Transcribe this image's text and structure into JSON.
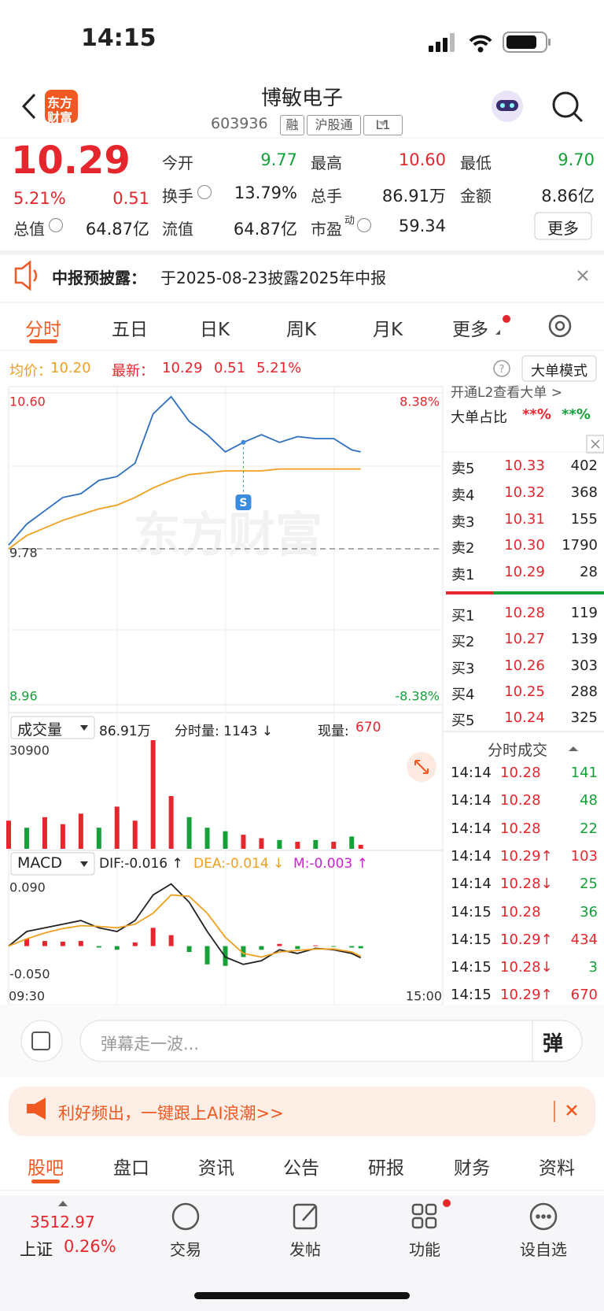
{
  "colors": {
    "up": "#e5262d",
    "down": "#16a03a",
    "avg": "#f0a020",
    "price": "#2f6fbf",
    "accent": "#f05a22"
  },
  "status_bar": {
    "time": "14:15"
  },
  "header": {
    "logo_lines": [
      "东方",
      "财富"
    ],
    "title": "博敏电子",
    "code": "603936",
    "tags": [
      "融",
      "沪股通",
      "L1"
    ]
  },
  "quote": {
    "price": "10.29",
    "change_pct": "5.21%",
    "change": "0.51",
    "tone": "up",
    "fields": [
      {
        "label": "今开",
        "value": "9.77",
        "tone": "down"
      },
      {
        "label": "最高",
        "value": "10.60",
        "tone": "up"
      },
      {
        "label": "最低",
        "value": "9.70",
        "tone": "down"
      },
      {
        "label": "换手",
        "value": "13.79%",
        "info": true
      },
      {
        "label": "总手",
        "value": "86.91万"
      },
      {
        "label": "金额",
        "value": "8.86亿"
      },
      {
        "label": "总值",
        "value": "64.87亿",
        "info": true
      },
      {
        "label": "流值",
        "value": "64.87亿"
      },
      {
        "label": "市盈",
        "sup": "动",
        "value": "59.34",
        "info": true
      }
    ],
    "more_button": "更多"
  },
  "notice": {
    "title": "中报预披露：",
    "text": "于2025-08-23披露2025年中报"
  },
  "tabs": {
    "items": [
      "分时",
      "五日",
      "日K",
      "周K",
      "月K",
      "更多"
    ],
    "active": 0
  },
  "info_line": {
    "avg_label": "均价：",
    "avg": "10.20",
    "latest_label": "最新：",
    "latest": "10.29",
    "change": "0.51",
    "change_pct": "5.21%",
    "mode_button": "大单模式"
  },
  "level2": {
    "promo": "开通L2查看大单 >",
    "ratio_label": "大单占比",
    "buy": "**%",
    "sell": "**%"
  },
  "order_book": {
    "asks": [
      [
        "卖5",
        "10.33",
        "402"
      ],
      [
        "卖4",
        "10.32",
        "368"
      ],
      [
        "卖3",
        "10.31",
        "155"
      ],
      [
        "卖2",
        "10.30",
        "1790"
      ],
      [
        "卖1",
        "10.29",
        "28"
      ]
    ],
    "bids": [
      [
        "买1",
        "10.28",
        "119"
      ],
      [
        "买2",
        "10.27",
        "139"
      ],
      [
        "买3",
        "10.26",
        "303"
      ],
      [
        "买4",
        "10.25",
        "288"
      ],
      [
        "买5",
        "10.24",
        "325"
      ]
    ]
  },
  "trades": {
    "title": "分时成交",
    "rows": [
      {
        "time": "14:14",
        "price": "10.28",
        "volume": "141",
        "tone": "down"
      },
      {
        "time": "14:14",
        "price": "10.28",
        "volume": "48",
        "tone": "down"
      },
      {
        "time": "14:14",
        "price": "10.28",
        "volume": "22",
        "tone": "down"
      },
      {
        "time": "14:14",
        "price": "10.29↑",
        "volume": "103",
        "tone": "up"
      },
      {
        "time": "14:14",
        "price": "10.28↓",
        "volume": "25",
        "tone": "down"
      },
      {
        "time": "14:15",
        "price": "10.28",
        "volume": "36",
        "tone": "down"
      },
      {
        "time": "14:15",
        "price": "10.29↑",
        "volume": "434",
        "tone": "up"
      },
      {
        "time": "14:15",
        "price": "10.28↓",
        "volume": "3",
        "tone": "down"
      },
      {
        "time": "14:15",
        "price": "10.29↑",
        "volume": "670",
        "tone": "up"
      }
    ]
  },
  "chart_data": [
    {
      "type": "line",
      "x": [
        "09:30",
        "09:40",
        "09:50",
        "10:00",
        "10:10",
        "10:20",
        "10:30",
        "10:40",
        "10:50",
        "11:00",
        "11:10",
        "11:20",
        "11:30",
        "13:10",
        "13:20",
        "13:30",
        "13:40",
        "13:50",
        "14:00",
        "14:10",
        "14:15"
      ],
      "series": [
        {
          "color": "#2f6fbf",
          "values": [
            9.8,
            9.91,
            9.98,
            10.05,
            10.07,
            10.14,
            10.16,
            10.23,
            10.49,
            10.58,
            10.45,
            10.38,
            10.29,
            10.34,
            10.38,
            10.34,
            10.37,
            10.36,
            10.36,
            10.3,
            10.29
          ]
        },
        {
          "color": "#f0a020",
          "values": [
            9.78,
            9.85,
            9.89,
            9.93,
            9.96,
            9.99,
            10.01,
            10.05,
            10.1,
            10.14,
            10.17,
            10.18,
            10.19,
            10.19,
            10.19,
            10.2,
            10.2,
            10.2,
            10.2,
            10.2,
            10.2
          ]
        }
      ],
      "ylim": [
        8.96,
        10.6
      ],
      "yticks": [
        {
          "value": 10.6,
          "label": "10.60"
        },
        9.78,
        8.96
      ],
      "y2lim": [
        -8.38,
        8.38
      ],
      "y2ticks": [
        {
          "value": 8.38,
          "label": "8.38%"
        },
        {
          "value": -8.38,
          "label": "-8.38%"
        }
      ],
      "xlim": [
        "09:30",
        "15:00"
      ],
      "watermark": "东方财富",
      "annotations": [
        {
          "x": "13:10",
          "label": "S"
        }
      ]
    },
    {
      "type": "bar",
      "selector": "成交量",
      "stats": [
        "86.91万",
        "分时量: 1143 ↓",
        "现量:",
        "670"
      ],
      "x": [
        "09:30",
        "09:40",
        "09:50",
        "10:00",
        "10:10",
        "10:20",
        "10:30",
        "10:40",
        "10:50",
        "11:00",
        "11:10",
        "11:20",
        "11:30",
        "13:10",
        "13:20",
        "13:30",
        "13:40",
        "13:50",
        "14:00",
        "14:10",
        "14:15"
      ],
      "values": [
        8000,
        6000,
        9000,
        7000,
        10000,
        6000,
        12000,
        8000,
        30900,
        15000,
        9000,
        6000,
        5000,
        4000,
        3000,
        2500,
        2000,
        2500,
        2000,
        3500,
        1143
      ],
      "bar_colors": [
        "#e5262d",
        "#16a03a",
        "#e5262d",
        "#e5262d",
        "#e5262d",
        "#16a03a",
        "#e5262d",
        "#e5262d",
        "#e5262d",
        "#e5262d",
        "#16a03a",
        "#16a03a",
        "#16a03a",
        "#e5262d",
        "#e5262d",
        "#16a03a",
        "#e5262d",
        "#16a03a",
        "#e5262d",
        "#16a03a",
        "#e5262d"
      ],
      "ylim": [
        0,
        30900
      ],
      "yticks": [
        30900
      ],
      "xlim": [
        "09:30",
        "15:00"
      ]
    },
    {
      "type": "macd",
      "selector": "MACD",
      "x": [
        "09:30",
        "09:40",
        "09:50",
        "10:00",
        "10:10",
        "10:20",
        "10:30",
        "10:40",
        "10:50",
        "11:00",
        "11:10",
        "11:20",
        "11:30",
        "13:10",
        "13:20",
        "13:30",
        "13:40",
        "13:50",
        "14:00",
        "14:10",
        "14:15"
      ],
      "series": [
        {
          "label": "DIF:-0.016 ↑",
          "color": "#222222",
          "style": "line",
          "values": [
            0.0,
            0.02,
            0.025,
            0.03,
            0.035,
            0.025,
            0.02,
            0.035,
            0.07,
            0.085,
            0.06,
            0.02,
            -0.015,
            -0.025,
            -0.02,
            -0.005,
            -0.01,
            -0.003,
            -0.005,
            -0.01,
            -0.016
          ]
        },
        {
          "label": "DEA:-0.014 ↓",
          "color": "#f0a020",
          "style": "line",
          "values": [
            0.0,
            0.01,
            0.018,
            0.024,
            0.028,
            0.027,
            0.025,
            0.03,
            0.045,
            0.07,
            0.068,
            0.045,
            0.012,
            -0.01,
            -0.015,
            -0.008,
            -0.006,
            -0.004,
            -0.004,
            -0.008,
            -0.014
          ]
        },
        {
          "label": "M:-0.003 ↑",
          "color": "#d020d0",
          "style": "bar",
          "values": [
            0.0,
            0.01,
            0.007,
            0.006,
            0.007,
            -0.002,
            -0.005,
            0.005,
            0.025,
            0.015,
            -0.008,
            -0.025,
            -0.027,
            -0.015,
            -0.005,
            0.003,
            -0.004,
            0.001,
            -0.001,
            -0.002,
            -0.003
          ]
        }
      ],
      "ylim": [
        -0.05,
        0.09
      ],
      "yticks": [
        {
          "value": 0.09,
          "label": "0.090"
        },
        {
          "value": -0.05,
          "label": "-0.050"
        }
      ],
      "xlim": [
        "09:30",
        "15:00"
      ],
      "xticks": [
        "09:30",
        "15:00"
      ]
    }
  ],
  "danmu": {
    "placeholder": "弹幕走一波...",
    "button": "弹"
  },
  "banner": {
    "text": "利好频出，一键跟上AI浪潮>>"
  },
  "sections": {
    "items": [
      "股吧",
      "盘口",
      "资讯",
      "公告",
      "研报",
      "财务",
      "资料"
    ],
    "active": 0
  },
  "bottom_nav": {
    "index_value": "3512.97",
    "index_name": "上证",
    "index_change": "0.26%",
    "items": [
      "交易",
      "发帖",
      "功能",
      "设自选"
    ]
  }
}
